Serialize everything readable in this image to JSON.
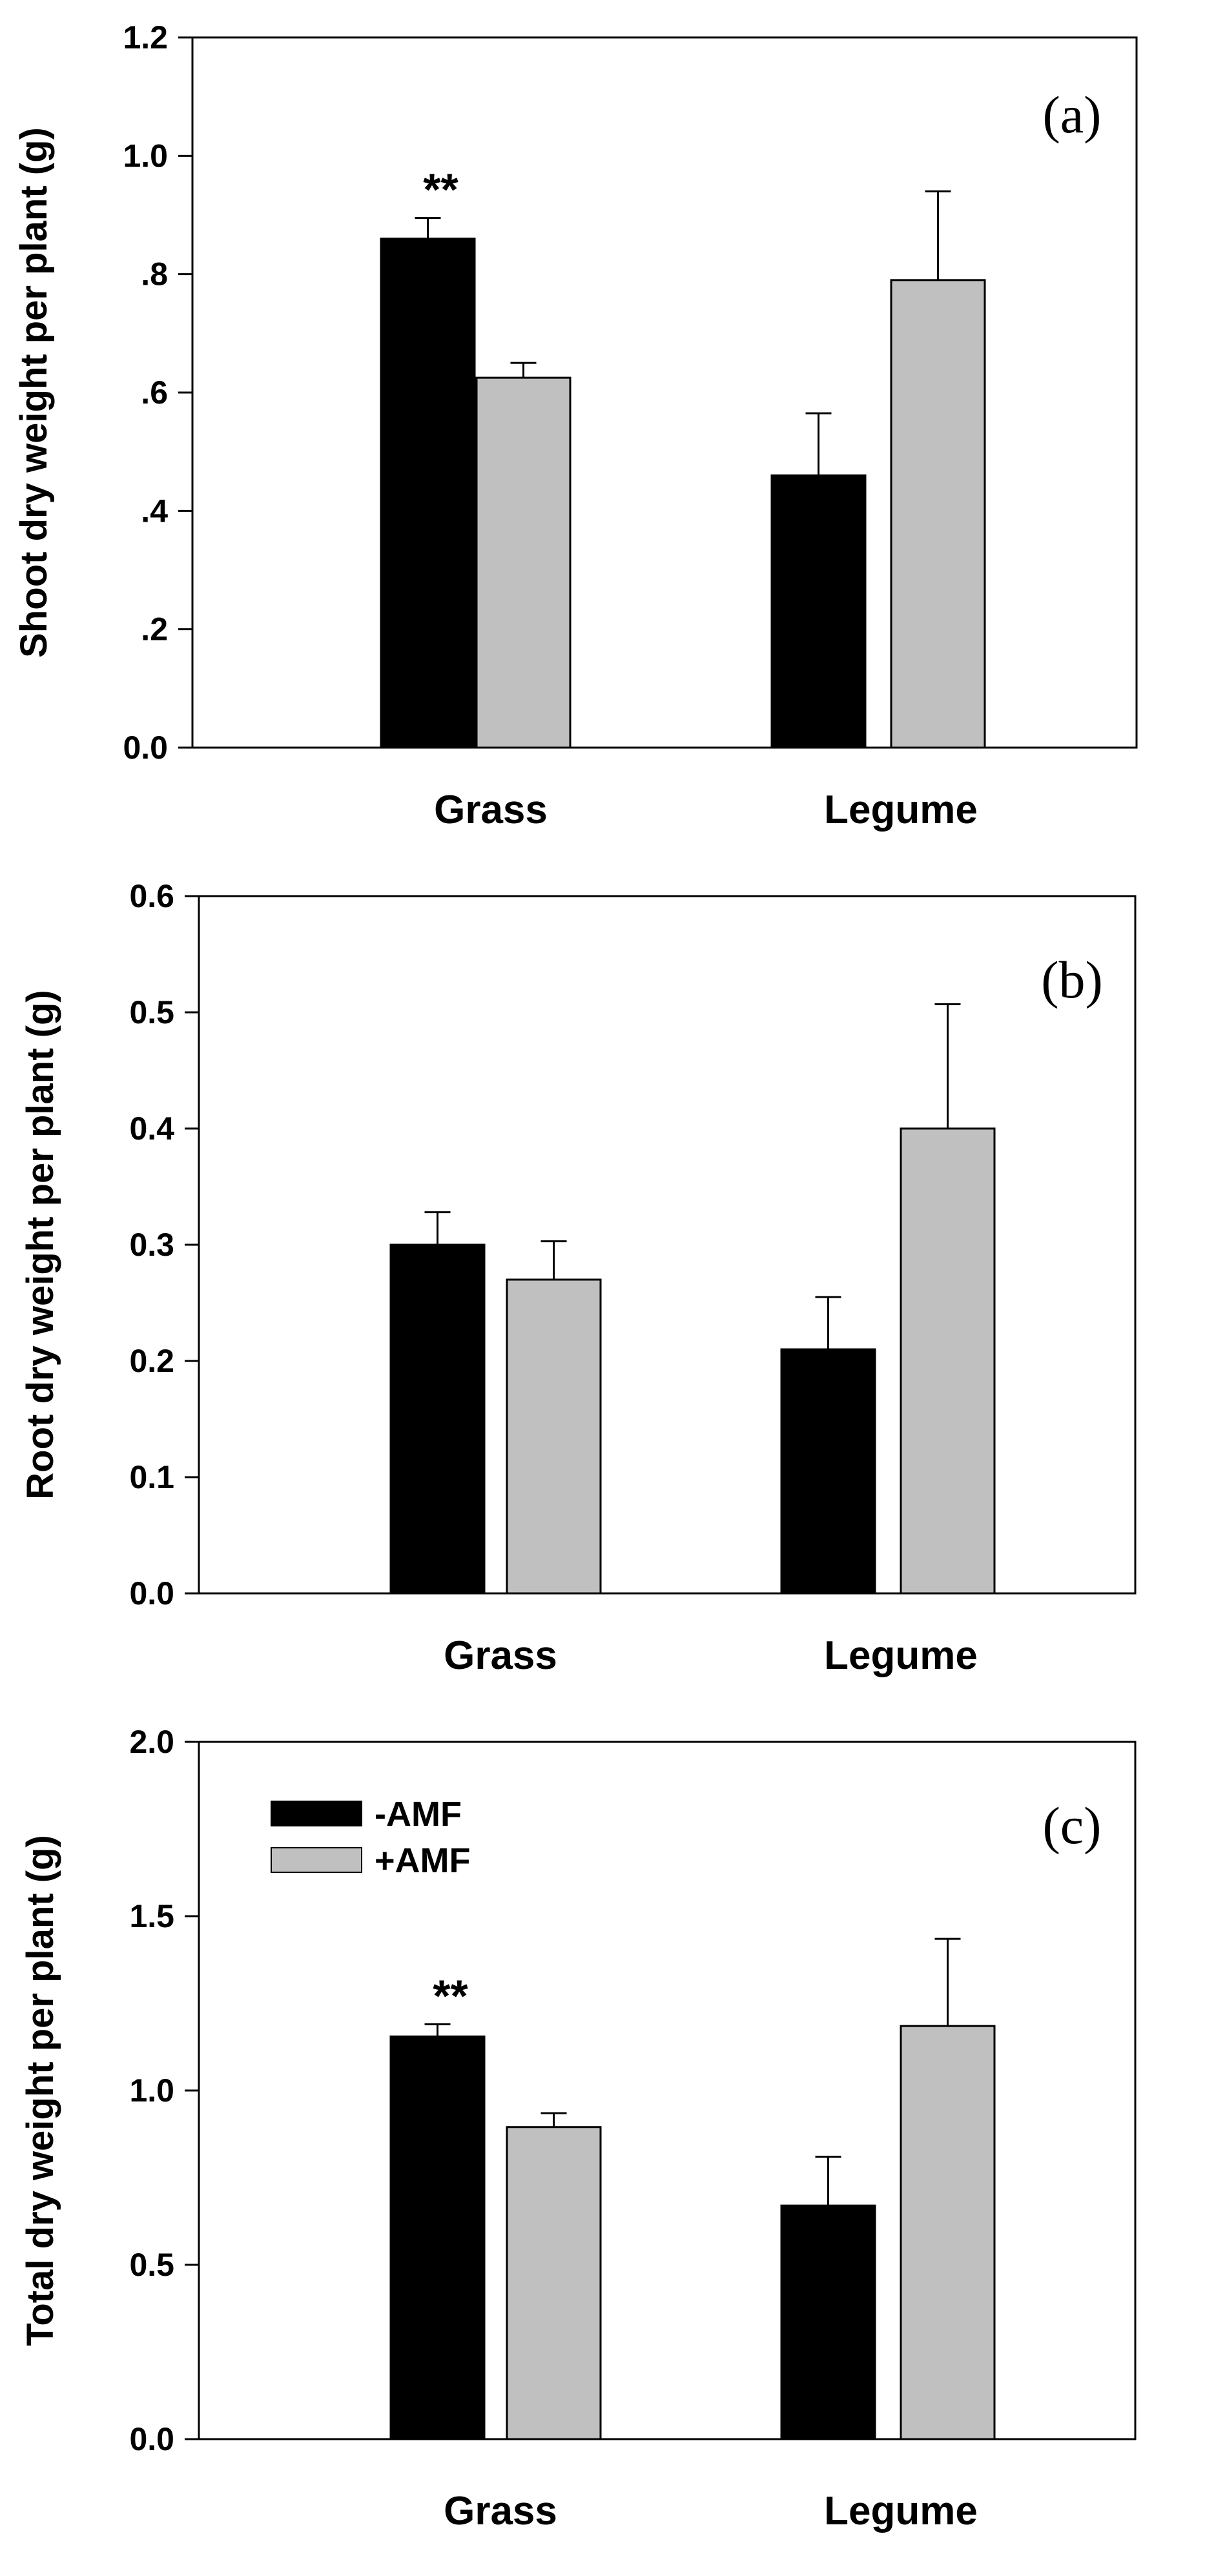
{
  "colors": {
    "minus_amf": "#000000",
    "plus_amf": "#c0c0c0",
    "axis": "#000000"
  },
  "legend": {
    "items": [
      {
        "label": "-AMF",
        "color": "#000000"
      },
      {
        "label": "+AMF",
        "color": "#c0c0c0"
      }
    ]
  },
  "chart_data": [
    {
      "type": "bar",
      "panel": "(a)",
      "ylabel": "Shoot dry weight per plant (g)",
      "ylim": [
        0,
        1.2
      ],
      "yticks": [
        0.0,
        0.2,
        0.4,
        0.6,
        0.8,
        1.0,
        1.2
      ],
      "ytick_labels": [
        "0.0",
        ".2",
        ".4",
        ".6",
        ".8",
        "1.0",
        "1.2"
      ],
      "categories": [
        "Grass",
        "Legume"
      ],
      "series": [
        {
          "name": "-AMF",
          "values": [
            0.86,
            0.46
          ],
          "errors": [
            0.035,
            0.105
          ]
        },
        {
          "name": "+AMF",
          "values": [
            0.625,
            0.79
          ],
          "errors": [
            0.025,
            0.15
          ]
        }
      ],
      "annotations": [
        {
          "text": "**",
          "category": "Grass"
        }
      ],
      "legend": false
    },
    {
      "type": "bar",
      "panel": "(b)",
      "ylabel": "Root dry weight per plant (g)",
      "ylim": [
        0,
        0.6
      ],
      "yticks": [
        0.0,
        0.1,
        0.2,
        0.3,
        0.4,
        0.5,
        0.6
      ],
      "ytick_labels": [
        "0.0",
        "0.1",
        "0.2",
        "0.3",
        "0.4",
        "0.5",
        "0.6"
      ],
      "categories": [
        "Grass",
        "Legume"
      ],
      "series": [
        {
          "name": "-AMF",
          "values": [
            0.3,
            0.21
          ],
          "errors": [
            0.028,
            0.045
          ]
        },
        {
          "name": "+AMF",
          "values": [
            0.27,
            0.4
          ],
          "errors": [
            0.033,
            0.107
          ]
        }
      ],
      "annotations": [],
      "legend": false
    },
    {
      "type": "bar",
      "panel": "(c)",
      "ylabel": "Total dry weight per plant (g)",
      "ylim": [
        0,
        2.0
      ],
      "yticks": [
        0.0,
        0.5,
        1.0,
        1.5,
        2.0
      ],
      "ytick_labels": [
        "0.0",
        "0.5",
        "1.0",
        "1.5",
        "2.0"
      ],
      "categories": [
        "Grass",
        "Legume"
      ],
      "series": [
        {
          "name": "-AMF",
          "values": [
            1.155,
            0.67
          ],
          "errors": [
            0.035,
            0.14
          ]
        },
        {
          "name": "+AMF",
          "values": [
            0.895,
            1.185
          ],
          "errors": [
            0.04,
            0.25
          ]
        }
      ],
      "annotations": [
        {
          "text": "**",
          "category": "Grass"
        }
      ],
      "legend": true
    }
  ]
}
